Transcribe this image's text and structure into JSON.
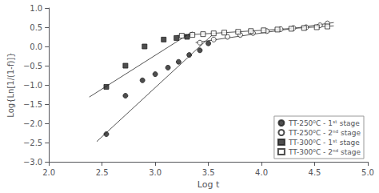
{
  "chart_data": {
    "type": "scatter",
    "xlabel": "Log t",
    "ylabel": "Log{Ln[1/(1-f)]}",
    "xlim": [
      2.0,
      5.0
    ],
    "ylim": [
      -3.0,
      1.0
    ],
    "xticks": [
      {
        "value": 2.0,
        "label": "2.0"
      },
      2.5,
      {
        "value": 3.0,
        "label": "3.0"
      },
      3.5,
      {
        "value": 4.0,
        "label": "4.0"
      },
      4.5,
      {
        "value": 5.0,
        "label": "5.0"
      }
    ],
    "yticks": [
      {
        "value": -3.0,
        "label": "−3.0"
      },
      {
        "value": -2.5,
        "label": "−2.5"
      },
      {
        "value": -2.0,
        "label": "−2.0"
      },
      {
        "value": -1.5,
        "label": "−1.5"
      },
      {
        "value": -1.0,
        "label": "−1.0"
      },
      {
        "value": -0.5,
        "label": "−0.5"
      },
      {
        "value": 0.0,
        "label": "0.0"
      },
      0.5,
      {
        "value": 1.0,
        "label": "1.0"
      }
    ],
    "grid": false,
    "legend": "lower right",
    "series": [
      {
        "name": "TT-250⁰C - 1ˢᵗ stage",
        "marker": "circle",
        "color": "#222222",
        "x": [
          2.54,
          2.72,
          2.88,
          3.0,
          3.12,
          3.22,
          3.32,
          3.42,
          3.5
        ],
        "values": [
          -2.28,
          -1.28,
          -0.88,
          -0.72,
          -0.55,
          -0.4,
          -0.22,
          -0.1,
          0.08
        ],
        "fit": {
          "type": "line",
          "x": [
            2.45,
            3.55
          ],
          "values": [
            -2.4725,
            0.3325
          ],
          "color": "#555555",
          "line_style": "solid"
        }
      },
      {
        "name": "TT-250⁰C - 2ⁿᵈ stage",
        "marker": "circle-open",
        "color": "#222222",
        "x": [
          3.42,
          3.55,
          3.68,
          3.8,
          3.92,
          4.05,
          4.18,
          4.3,
          4.42,
          4.55,
          4.62
        ],
        "values": [
          0.1,
          0.18,
          0.25,
          0.3,
          0.35,
          0.4,
          0.45,
          0.48,
          0.5,
          0.55,
          0.6
        ],
        "fit": {
          "type": "line",
          "x": [
            3.38,
            4.68
          ],
          "values": [
            0.102,
            0.622
          ],
          "color": "#555555",
          "line_style": "solid"
        }
      },
      {
        "name": "TT-300⁰C - 1ˢᵗ stage",
        "marker": "square",
        "color": "#222222",
        "x": [
          2.54,
          2.72,
          2.9,
          3.08,
          3.2,
          3.3
        ],
        "values": [
          -1.05,
          -0.5,
          0.0,
          0.18,
          0.22,
          0.25
        ],
        "fit": {
          "type": "line",
          "x": [
            2.38,
            3.35
          ],
          "values": [
            -1.315,
            0.3825
          ],
          "color": "#555555",
          "line_style": "solid"
        }
      },
      {
        "name": "TT-300⁰C - 2ⁿᵈ stage",
        "marker": "square-open",
        "color": "#222222",
        "x": [
          3.25,
          3.35,
          3.45,
          3.55,
          3.65,
          3.78,
          3.9,
          4.02,
          4.15,
          4.28,
          4.4,
          4.52,
          4.62
        ],
        "values": [
          0.28,
          0.3,
          0.32,
          0.34,
          0.36,
          0.38,
          0.4,
          0.42,
          0.44,
          0.46,
          0.48,
          0.5,
          0.52
        ],
        "fit": {
          "type": "line",
          "x": [
            3.2,
            4.68
          ],
          "values": [
            0.284,
            0.5356
          ],
          "color": "#555555",
          "line_style": "solid"
        }
      }
    ]
  }
}
